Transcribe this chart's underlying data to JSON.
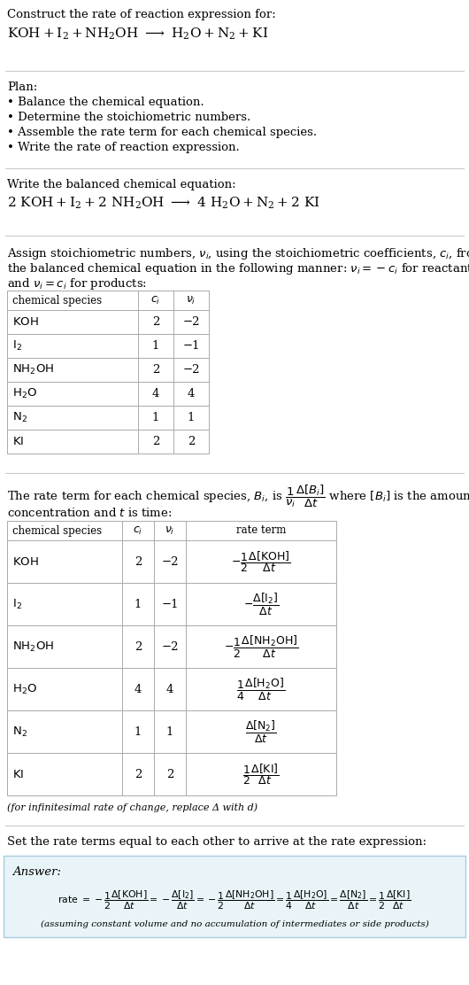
{
  "bg_color": "#ffffff",
  "plan_header": "Plan:",
  "plan_items": [
    "• Balance the chemical equation.",
    "• Determine the stoichiometric numbers.",
    "• Assemble the rate term for each chemical species.",
    "• Write the rate of reaction expression."
  ],
  "table1_rows": [
    [
      "KOH",
      "2",
      "−2"
    ],
    [
      "I₂",
      "1",
      "−1"
    ],
    [
      "NH₂OH",
      "2",
      "−2"
    ],
    [
      "H₂O",
      "4",
      "4"
    ],
    [
      "N₂",
      "1",
      "1"
    ],
    [
      "KI",
      "2",
      "2"
    ]
  ],
  "footnote": "(for infinitesimal rate of change, replace Δ with d)",
  "section5_header": "Set the rate terms equal to each other to arrive at the rate expression:",
  "answer_label": "Answer:",
  "answer_note": "(assuming constant volume and no accumulation of intermediates or side products)"
}
